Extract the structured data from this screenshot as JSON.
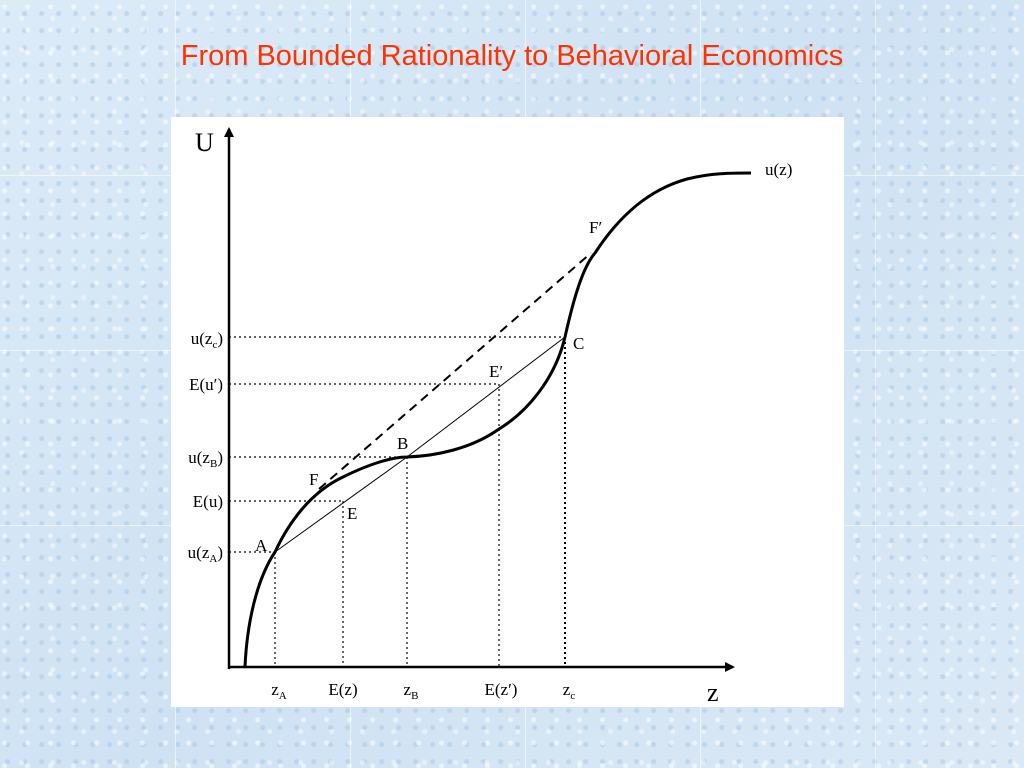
{
  "slide": {
    "title": "From Bounded Rationality to Behavioral Economics"
  },
  "diagram": {
    "axes": {
      "y_label": "U",
      "x_label": "z"
    },
    "curve_label": "u(z)",
    "points": {
      "A": "A",
      "B": "B",
      "C": "C",
      "E": "E",
      "E_prime": "E′",
      "F": "F",
      "F_prime": "F′"
    },
    "y_ticks": {
      "u_zc": {
        "base": "u(z",
        "sub": "c",
        "end": ")"
      },
      "E_u_prime": {
        "base": "E(u′)"
      },
      "u_zB": {
        "base": "u(z",
        "sub": "B",
        "end": ")"
      },
      "E_u": {
        "base": "E(u)"
      },
      "u_zA": {
        "base": "u(z",
        "sub": "A",
        "end": ")"
      }
    },
    "x_ticks": {
      "zA": {
        "base": "z",
        "sub": "A"
      },
      "E_z": {
        "base": "E(z)"
      },
      "zB": {
        "base": "z",
        "sub": "B"
      },
      "E_z_prime": {
        "base": "E(z′)"
      },
      "zc": {
        "base": "z",
        "sub": "c"
      }
    }
  }
}
